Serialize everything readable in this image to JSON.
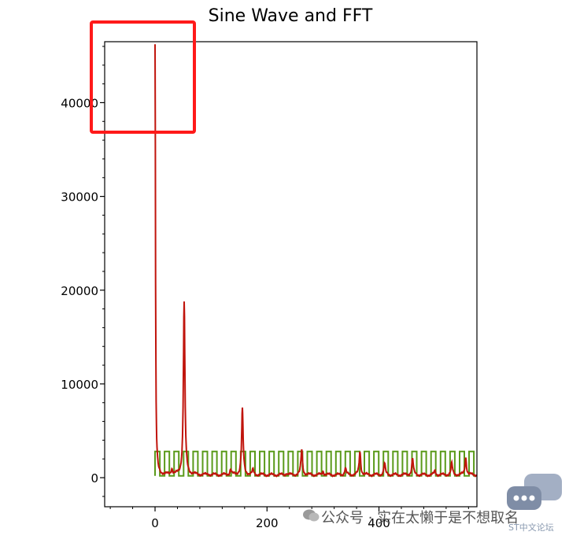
{
  "chart_data": {
    "type": "line",
    "title": "Sine Wave and FFT",
    "xlabel": "",
    "ylabel": "",
    "xlim": [
      -90,
      575
    ],
    "ylim": [
      -3100,
      46500
    ],
    "x_ticks": [
      0,
      200,
      400
    ],
    "y_ticks": [
      0,
      10000,
      20000,
      30000,
      40000
    ],
    "x_tick_labels": [
      "0",
      "200",
      "400"
    ],
    "y_tick_labels": [
      "0",
      "10000",
      "20000",
      "30000",
      "40000"
    ],
    "grid": false,
    "legend": "none",
    "series": [
      {
        "color": "#5a9a1a",
        "kind": "square-wave",
        "x_start": 0,
        "x_end": 575,
        "period": 17,
        "low": 200,
        "high": 2800
      },
      {
        "color": "#c0140c",
        "kind": "fft",
        "baseline": 300,
        "peaks": [
          {
            "x": 0,
            "y": 46200
          },
          {
            "x": 52,
            "y": 18700
          },
          {
            "x": 156,
            "y": 7300
          },
          {
            "x": 262,
            "y": 3000
          },
          {
            "x": 366,
            "y": 2800
          },
          {
            "x": 460,
            "y": 2000
          },
          {
            "x": 555,
            "y": 2200
          },
          {
            "x": 30,
            "y": 900
          },
          {
            "x": 95,
            "y": 400
          },
          {
            "x": 135,
            "y": 900
          },
          {
            "x": 175,
            "y": 800
          },
          {
            "x": 235,
            "y": 500
          },
          {
            "x": 300,
            "y": 700
          },
          {
            "x": 340,
            "y": 1000
          },
          {
            "x": 410,
            "y": 1500
          },
          {
            "x": 500,
            "y": 700
          },
          {
            "x": 530,
            "y": 1500
          }
        ]
      }
    ],
    "annotation": {
      "type": "rectangle",
      "color": "#ff1a1a",
      "x_range": [
        -115,
        75
      ],
      "y_range": [
        36500,
        48000
      ]
    }
  },
  "watermark": {
    "text": "公众号 · 实在太懒于是不想取名",
    "subtext": "ST中文论坛",
    "icon": "wechat-icon",
    "bubble_icon": "chat-bubble-icon"
  }
}
